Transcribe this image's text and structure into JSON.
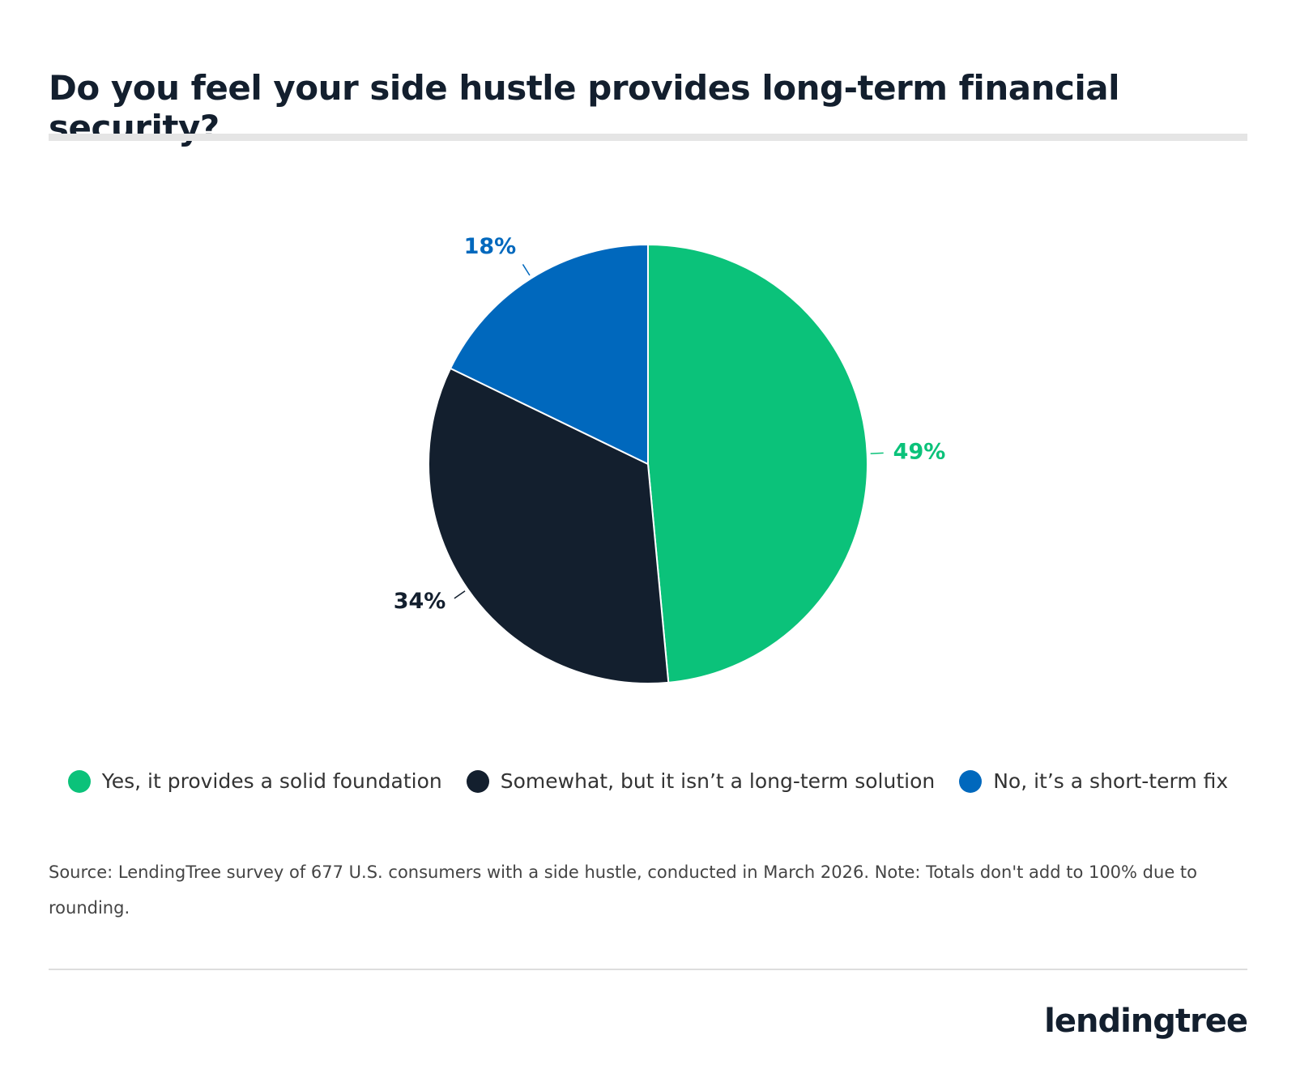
{
  "chart_data": {
    "type": "pie",
    "title": "Do you feel your side hustle provides long-term financial security?",
    "categories": [
      "Yes, it provides a solid foundation",
      "Somewhat, but it isn’t a long-term solution",
      "No, it’s a short-term fix"
    ],
    "values": [
      49,
      34,
      18
    ],
    "value_labels": [
      "49%",
      "34%",
      "18%"
    ],
    "colors": [
      "#0bc27a",
      "#131f2e",
      "#0068bd"
    ],
    "source": "Source: LendingTree survey of 677 U.S. consumers with a side hustle, conducted in March 2026. Note: Totals don't add to 100% due to rounding."
  },
  "brand": "lendingtree"
}
